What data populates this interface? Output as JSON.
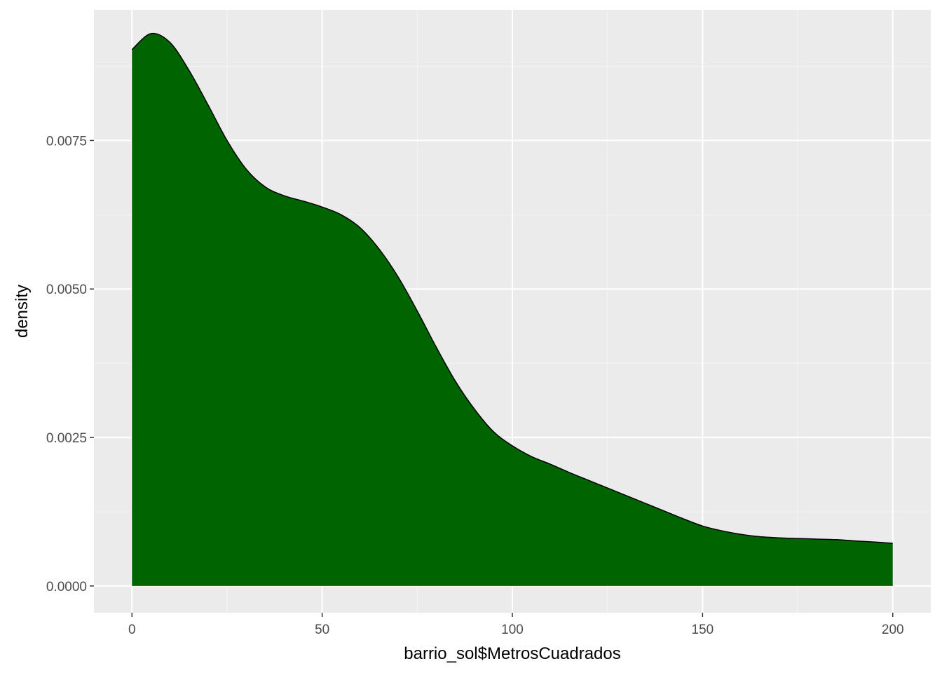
{
  "chart_data": {
    "type": "area",
    "title": "",
    "xlabel": "barrio_sol$MetrosCuadrados",
    "ylabel": "density",
    "xlim": [
      -10,
      210
    ],
    "ylim": [
      -0.00045,
      0.0097
    ],
    "x_ticks": [
      0,
      50,
      100,
      150,
      200
    ],
    "x_tick_labels": [
      "0",
      "50",
      "100",
      "150",
      "200"
    ],
    "y_ticks": [
      0,
      0.0025,
      0.005,
      0.0075
    ],
    "y_tick_labels": [
      "0.0000",
      "0.0025",
      "0.0050",
      "0.0075"
    ],
    "grid": true,
    "legend": "none",
    "colors": {
      "panel_background": "#ebebeb",
      "grid_major": "#ffffff",
      "grid_minor": "#f5f5f5",
      "fill": "#006400",
      "outline": "#000000",
      "tick_mark": "#333333"
    },
    "series": [
      {
        "x": [
          0,
          5,
          10,
          15,
          20,
          25,
          30,
          35,
          40,
          45,
          50,
          55,
          60,
          65,
          70,
          75,
          80,
          85,
          90,
          95,
          100,
          105,
          110,
          115,
          120,
          125,
          130,
          135,
          140,
          145,
          150,
          155,
          160,
          165,
          170,
          175,
          180,
          185,
          190,
          195,
          200
        ],
        "y": [
          0.00903,
          0.0093,
          0.00915,
          0.00868,
          0.0081,
          0.0075,
          0.00702,
          0.00672,
          0.00657,
          0.00648,
          0.00638,
          0.00625,
          0.00603,
          0.00567,
          0.0052,
          0.00463,
          0.00402,
          0.00345,
          0.00298,
          0.0026,
          0.00236,
          0.00218,
          0.00205,
          0.00191,
          0.00178,
          0.00165,
          0.00152,
          0.00139,
          0.00126,
          0.00113,
          0.00101,
          0.00093,
          0.00087,
          0.00083,
          0.00081,
          0.0008,
          0.00079,
          0.00078,
          0.00076,
          0.00074,
          0.00072
        ]
      }
    ]
  }
}
